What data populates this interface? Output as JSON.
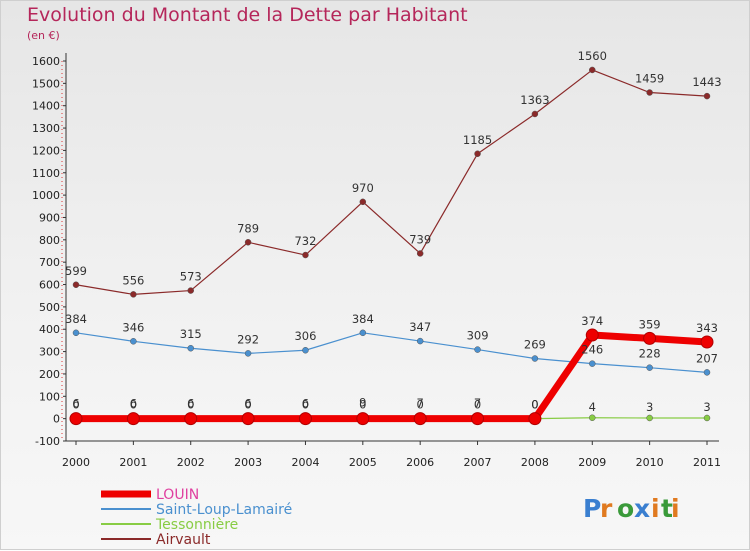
{
  "chart_data": {
    "type": "line",
    "title": "Evolution du Montant de la Dette par Habitant",
    "subtitle": "(en €)",
    "x": [
      "2000",
      "2001",
      "2002",
      "2003",
      "2004",
      "2005",
      "2006",
      "2007",
      "2008",
      "2009",
      "2010",
      "2011"
    ],
    "ylim": [
      -100,
      1600
    ],
    "yticks": [
      -100,
      0,
      100,
      200,
      300,
      400,
      500,
      600,
      700,
      800,
      900,
      1000,
      1100,
      1200,
      1300,
      1400,
      1500,
      1600
    ],
    "grid": false,
    "legend_position": "bottom-left",
    "series": [
      {
        "name": "LOUIN",
        "color": "#ee0000",
        "values": [
          0,
          0,
          0,
          0,
          0,
          0,
          0,
          0,
          0,
          374,
          359,
          343
        ]
      },
      {
        "name": "Saint-Loup-Lamairé",
        "color": "#4a90cf",
        "values": [
          384,
          346,
          315,
          292,
          306,
          384,
          347,
          309,
          269,
          246,
          228,
          207
        ]
      },
      {
        "name": "Tessonnière",
        "color": "#88cc44",
        "values": [
          6,
          6,
          6,
          6,
          6,
          9,
          7,
          7,
          0,
          4,
          3,
          3
        ]
      },
      {
        "name": "Airvault",
        "color": "#8b2a2a",
        "values": [
          599,
          556,
          573,
          789,
          732,
          970,
          739,
          1185,
          1363,
          1560,
          1459,
          1443
        ]
      }
    ]
  },
  "logo": {
    "text": "Proxiti"
  }
}
